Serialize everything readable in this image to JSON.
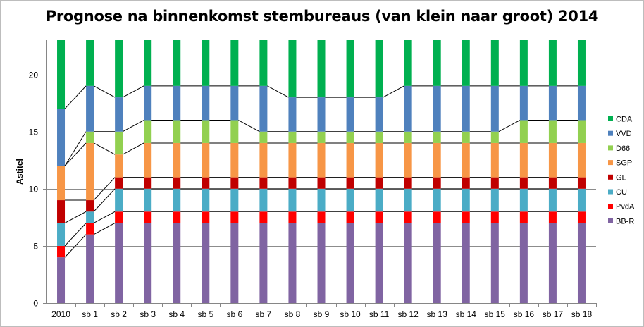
{
  "chart_data": {
    "type": "bar",
    "stacked": true,
    "title": "Prognose na binnenkomst stembureaus (van klein naar groot) 2014",
    "ylabel": "Astitel",
    "xlabel": "",
    "ylim": [
      0,
      23
    ],
    "yticks": [
      0,
      5,
      10,
      15,
      20
    ],
    "grid": true,
    "legend_position": "right",
    "connector_lines": true,
    "categories": [
      "2010",
      "sb 1",
      "sb 2",
      "sb 3",
      "sb 4",
      "sb 5",
      "sb 6",
      "sb 7",
      "sb 8",
      "sb 9",
      "sb 10",
      "sb 11",
      "sb 12",
      "sb 13",
      "sb 14",
      "sb 15",
      "sb 16",
      "sb 17",
      "sb 18"
    ],
    "series": [
      {
        "name": "BB-R",
        "color": "#8064a2",
        "values": [
          4,
          6,
          7,
          7,
          7,
          7,
          7,
          7,
          7,
          7,
          7,
          7,
          7,
          7,
          7,
          7,
          7,
          7,
          7
        ]
      },
      {
        "name": "PvdA",
        "color": "#ff0000",
        "values": [
          1,
          1,
          1,
          1,
          1,
          1,
          1,
          1,
          1,
          1,
          1,
          1,
          1,
          1,
          1,
          1,
          1,
          1,
          1
        ]
      },
      {
        "name": "CU",
        "color": "#4bacc6",
        "values": [
          2,
          1,
          2,
          2,
          2,
          2,
          2,
          2,
          2,
          2,
          2,
          2,
          2,
          2,
          2,
          2,
          2,
          2,
          2
        ]
      },
      {
        "name": "GL",
        "color": "#c00000",
        "values": [
          2,
          1,
          1,
          1,
          1,
          1,
          1,
          1,
          1,
          1,
          1,
          1,
          1,
          1,
          1,
          1,
          1,
          1,
          1
        ]
      },
      {
        "name": "SGP",
        "color": "#f79646",
        "values": [
          3,
          5,
          2,
          3,
          3,
          3,
          3,
          3,
          3,
          3,
          3,
          3,
          3,
          3,
          3,
          3,
          3,
          3,
          3
        ]
      },
      {
        "name": "D66",
        "color": "#92d050",
        "values": [
          0,
          1,
          2,
          2,
          2,
          2,
          2,
          1,
          1,
          1,
          1,
          1,
          1,
          1,
          1,
          1,
          2,
          2,
          2
        ]
      },
      {
        "name": "VVD",
        "color": "#4f81bd",
        "values": [
          5,
          4,
          3,
          3,
          3,
          3,
          3,
          4,
          3,
          3,
          3,
          3,
          4,
          4,
          4,
          4,
          3,
          3,
          3
        ]
      },
      {
        "name": "CDA",
        "color": "#00b050",
        "values": [
          6,
          4,
          5,
          4,
          4,
          4,
          4,
          4,
          5,
          5,
          5,
          5,
          4,
          4,
          4,
          4,
          4,
          4,
          4
        ]
      }
    ],
    "legend_order": [
      "CDA",
      "VVD",
      "D66",
      "SGP",
      "GL",
      "CU",
      "PvdA",
      "BB-R"
    ],
    "colors": {
      "gridline": "#8c8c8c",
      "axis": "#868686",
      "connector": "#000000"
    }
  }
}
